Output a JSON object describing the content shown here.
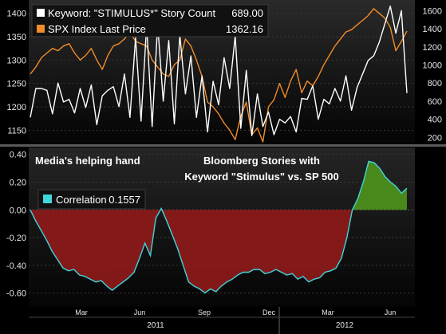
{
  "chart_data": [
    {
      "type": "line",
      "panel": "top",
      "series": [
        {
          "name": "Keyword: \"STIMULUS*\" Story Count",
          "last_value": "689.00",
          "color": "#ffffff",
          "axis": "right",
          "values": [
            420,
            740,
            740,
            720,
            460,
            800,
            590,
            620,
            470,
            740,
            530,
            780,
            340,
            660,
            720,
            760,
            540,
            900,
            420,
            1300,
            380,
            1440,
            320,
            1450,
            600,
            1270,
            350,
            1330,
            680,
            1100,
            420,
            880,
            260,
            820,
            560,
            1080,
            740,
            1320,
            300,
            940,
            220,
            680,
            320,
            480,
            230,
            400,
            360,
            430,
            260,
            630,
            620,
            770,
            400,
            620,
            570,
            740,
            600,
            880,
            500,
            750,
            900,
            1050,
            1100,
            1250,
            1450,
            1650,
            1350,
            1600,
            689
          ]
        },
        {
          "name": "SPX Index Last Price",
          "last_value": "1362.16",
          "color": "#f28c28",
          "axis": "left",
          "values": [
            1270,
            1285,
            1305,
            1315,
            1325,
            1320,
            1330,
            1335,
            1315,
            1300,
            1310,
            1325,
            1300,
            1280,
            1310,
            1330,
            1335,
            1345,
            1360,
            1340,
            1335,
            1330,
            1300,
            1285,
            1270,
            1265,
            1290,
            1300,
            1345,
            1330,
            1300,
            1265,
            1210,
            1200,
            1185,
            1165,
            1150,
            1130,
            1180,
            1210,
            1140,
            1155,
            1125,
            1200,
            1215,
            1250,
            1220,
            1255,
            1280,
            1230,
            1255,
            1245,
            1265,
            1290,
            1310,
            1330,
            1345,
            1360,
            1365,
            1375,
            1385,
            1395,
            1410,
            1400,
            1390,
            1370,
            1320,
            1340,
            1362
          ]
        }
      ],
      "left_axis": {
        "ylim": [
          1125,
          1425
        ],
        "ticks": [
          1150,
          1200,
          1250,
          1300,
          1350,
          1400
        ]
      },
      "right_axis": {
        "ylim": [
          150,
          1700
        ],
        "ticks": [
          200,
          400,
          600,
          800,
          1000,
          1200,
          1400,
          1600
        ]
      }
    },
    {
      "type": "area",
      "panel": "bottom",
      "series": [
        {
          "name": "Correlation",
          "last_value": "0.1557",
          "color": "#3fd6dc",
          "values": [
            0.0,
            -0.08,
            -0.15,
            -0.22,
            -0.3,
            -0.36,
            -0.42,
            -0.44,
            -0.43,
            -0.47,
            -0.48,
            -0.5,
            -0.52,
            -0.51,
            -0.55,
            -0.58,
            -0.55,
            -0.52,
            -0.49,
            -0.45,
            -0.35,
            -0.24,
            -0.33,
            -0.06,
            0.01,
            -0.08,
            -0.18,
            -0.28,
            -0.4,
            -0.52,
            -0.55,
            -0.57,
            -0.6,
            -0.57,
            -0.59,
            -0.55,
            -0.52,
            -0.5,
            -0.47,
            -0.45,
            -0.45,
            -0.43,
            -0.43,
            -0.46,
            -0.45,
            -0.43,
            -0.45,
            -0.47,
            -0.46,
            -0.5,
            -0.48,
            -0.52,
            -0.5,
            -0.49,
            -0.45,
            -0.44,
            -0.42,
            -0.35,
            -0.2,
            0.0,
            0.08,
            0.2,
            0.35,
            0.34,
            0.3,
            0.24,
            0.2,
            0.17,
            0.12,
            0.156
          ]
        }
      ],
      "ylim": [
        -0.7,
        0.45
      ],
      "yticks": [
        "0.40",
        "0.20",
        "0.00",
        "-0.20",
        "-0.40",
        "-0.60"
      ],
      "positive_fill": "#4c8f1c",
      "negative_fill": "#8e1a1a"
    }
  ],
  "x_axis": {
    "months": [
      "Mar",
      "Jun",
      "Sep",
      "Dec",
      "Mar",
      "Jun"
    ],
    "years": [
      "2011",
      "2012"
    ]
  },
  "annotations": {
    "panel_title": "Media's helping hand",
    "headline_line1": "Bloomberg Stories with",
    "headline_line2": "Keyword \"Stimulus\" vs. SP 500"
  },
  "legend_labels": {
    "correlation": "Correlation"
  }
}
